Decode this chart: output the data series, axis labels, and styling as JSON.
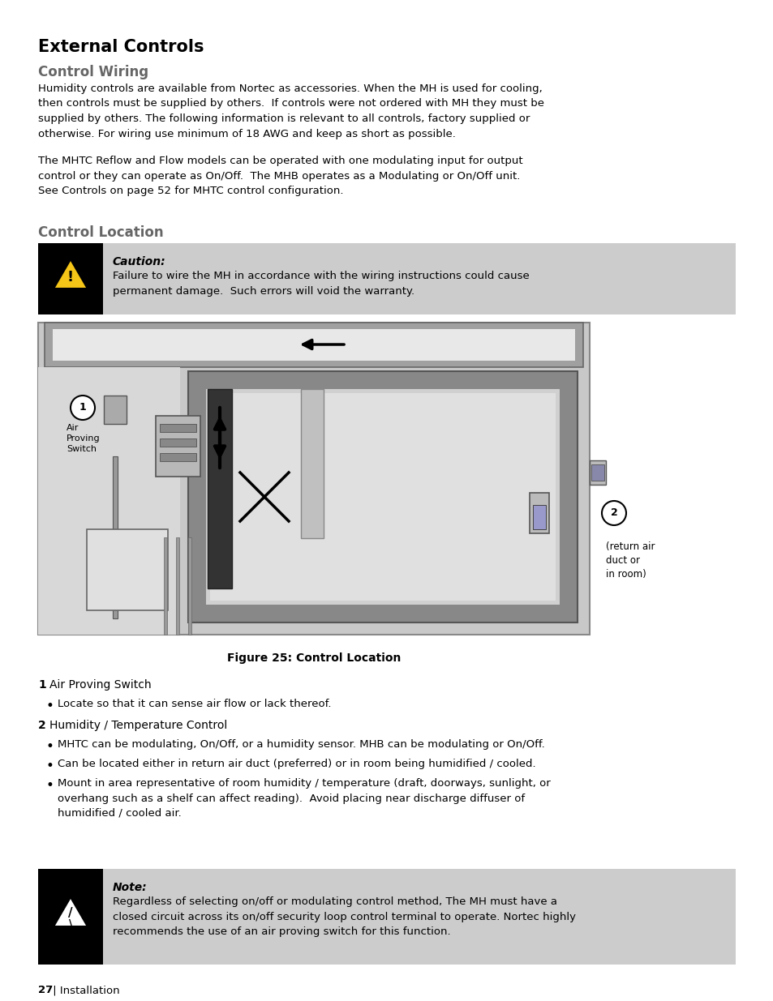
{
  "title": "External Controls",
  "subtitle_wiring": "Control Wiring",
  "subtitle_location": "Control Location",
  "para1": "Humidity controls are available from Nortec as accessories. When the MH is used for cooling,\nthen controls must be supplied by others.  If controls were not ordered with MH they must be\nsupplied by others. The following information is relevant to all controls, factory supplied or\notherwise. For wiring use minimum of 18 AWG and keep as short as possible.",
  "para2": "The MHTC Reflow and Flow models can be operated with one modulating input for output\ncontrol or they can operate as On/Off.  The MHB operates as a Modulating or On/Off unit.\nSee Controls on page 52 for MHTC control configuration.",
  "caution_title": "Caution:",
  "caution_text": "Failure to wire the MH in accordance with the wiring instructions could cause\npermanent damage.  Such errors will void the warranty.",
  "fig_caption": "Figure 25: Control Location",
  "list_item1_bold": "1",
  "list_item1_text": "  Air Proving Switch",
  "list_bullet1": "Locate so that it can sense air flow or lack thereof.",
  "list_item2_bold": "2",
  "list_item2_text": "  Humidity / Temperature Control",
  "list_bullet2": "MHTC can be modulating, On/Off, or a humidity sensor. MHB can be modulating or On/Off.",
  "list_bullet3": "Can be located either in return air duct (preferred) or in room being humidified / cooled.",
  "list_bullet4": "Mount in area representative of room humidity / temperature (draft, doorways, sunlight, or\noverhang such as a shelf can affect reading).  Avoid placing near discharge diffuser of\nhumidified / cooled air.",
  "note_title": "Note:",
  "note_text": "Regardless of selecting on/off or modulating control method, The MH must have a\nclosed circuit across its on/off security loop control terminal to operate. Nortec highly\nrecommends the use of an air proving switch for this function.",
  "footer_num": "27",
  "footer_text": " | Installation",
  "bg_color": "#ffffff",
  "caution_bg": "#cccccc",
  "note_bg": "#cccccc",
  "icon_bg": "#000000",
  "diag_outer_bg": "#b8b8b8",
  "diag_duct_bg": "#d0d0d0",
  "diag_room_outer": "#888888",
  "diag_room_inner": "#d8d8d8",
  "diag_room_floor": "#aaaaaa"
}
